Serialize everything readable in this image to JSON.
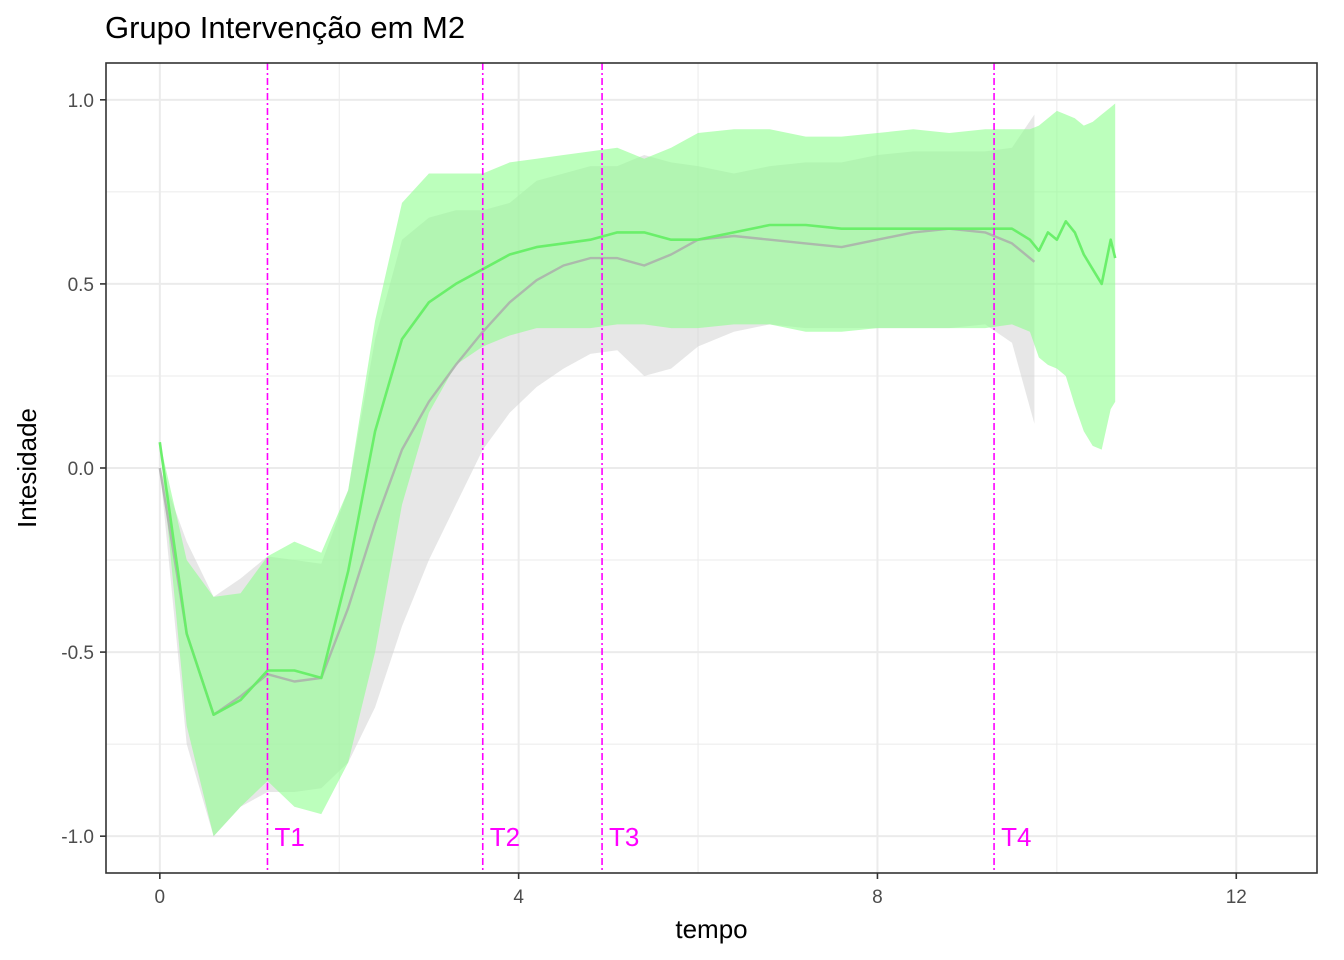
{
  "chart_data": {
    "type": "line",
    "title": "Grupo Intervenção em M2",
    "xlabel": "tempo",
    "ylabel": "Intesidade",
    "xlim": [
      -0.6,
      12.9
    ],
    "ylim": [
      -1.1,
      1.1
    ],
    "x_ticks": [
      0,
      4,
      8,
      12
    ],
    "x_tick_labels": [
      "0",
      "4",
      "8",
      "12"
    ],
    "y_ticks": [
      -1.0,
      -0.5,
      0.0,
      0.5,
      1.0
    ],
    "y_tick_labels": [
      "-1.0",
      "-0.5",
      "0.0",
      "0.5",
      "1.0"
    ],
    "grid": true,
    "legend": "none",
    "colors": {
      "green_line": "#66ee66",
      "green_band": "#90ff90",
      "grey_line": "#aaaaaa",
      "grey_band": "#d3d3d3",
      "marker": "#ff00ff",
      "grid": "#ebebeb",
      "panel_border": "#333333"
    },
    "markers": [
      {
        "x": 1.2,
        "label": "T1"
      },
      {
        "x": 3.6,
        "label": "T2"
      },
      {
        "x": 4.93,
        "label": "T3"
      },
      {
        "x": 9.3,
        "label": "T4"
      }
    ],
    "series": [
      {
        "color": "#aaaaaa",
        "band_color": "#d3d3d3",
        "x": [
          0,
          0.3,
          0.6,
          0.9,
          1.2,
          1.5,
          1.8,
          2.1,
          2.4,
          2.7,
          3.0,
          3.3,
          3.6,
          3.9,
          4.2,
          4.5,
          4.8,
          5.1,
          5.4,
          5.7,
          6.0,
          6.4,
          6.8,
          7.2,
          7.6,
          8.0,
          8.4,
          8.8,
          9.2,
          9.5,
          9.75
        ],
        "y": [
          0.0,
          -0.45,
          -0.67,
          -0.62,
          -0.56,
          -0.58,
          -0.57,
          -0.38,
          -0.15,
          0.05,
          0.18,
          0.28,
          0.37,
          0.45,
          0.51,
          0.55,
          0.57,
          0.57,
          0.55,
          0.58,
          0.62,
          0.63,
          0.62,
          0.61,
          0.6,
          0.62,
          0.64,
          0.65,
          0.64,
          0.61,
          0.56
        ],
        "lower": [
          0.0,
          -0.75,
          -1.0,
          -0.92,
          -0.88,
          -0.88,
          -0.87,
          -0.8,
          -0.65,
          -0.43,
          -0.25,
          -0.1,
          0.05,
          0.15,
          0.22,
          0.27,
          0.31,
          0.32,
          0.25,
          0.27,
          0.33,
          0.37,
          0.39,
          0.38,
          0.38,
          0.38,
          0.38,
          0.38,
          0.39,
          0.34,
          0.12
        ],
        "upper": [
          0.0,
          -0.2,
          -0.35,
          -0.3,
          -0.24,
          -0.25,
          -0.26,
          -0.06,
          0.35,
          0.62,
          0.68,
          0.7,
          0.7,
          0.72,
          0.78,
          0.8,
          0.82,
          0.82,
          0.85,
          0.83,
          0.82,
          0.8,
          0.82,
          0.83,
          0.83,
          0.85,
          0.86,
          0.86,
          0.86,
          0.87,
          0.96
        ]
      },
      {
        "color": "#66ee66",
        "band_color": "#90ff90",
        "x": [
          0,
          0.3,
          0.6,
          0.9,
          1.2,
          1.5,
          1.8,
          2.1,
          2.4,
          2.7,
          3.0,
          3.3,
          3.6,
          3.9,
          4.2,
          4.5,
          4.8,
          5.1,
          5.4,
          5.7,
          6.0,
          6.4,
          6.8,
          7.2,
          7.6,
          8.0,
          8.4,
          8.8,
          9.2,
          9.5,
          9.7,
          9.8,
          9.9,
          10.0,
          10.1,
          10.2,
          10.3,
          10.4,
          10.5,
          10.6,
          10.65
        ],
        "y": [
          0.07,
          -0.45,
          -0.67,
          -0.63,
          -0.55,
          -0.55,
          -0.57,
          -0.28,
          0.1,
          0.35,
          0.45,
          0.5,
          0.54,
          0.58,
          0.6,
          0.61,
          0.62,
          0.64,
          0.64,
          0.62,
          0.62,
          0.64,
          0.66,
          0.66,
          0.65,
          0.65,
          0.65,
          0.65,
          0.65,
          0.65,
          0.62,
          0.59,
          0.64,
          0.62,
          0.67,
          0.64,
          0.58,
          0.54,
          0.5,
          0.62,
          0.57
        ],
        "lower": [
          0.07,
          -0.7,
          -1.0,
          -0.92,
          -0.85,
          -0.92,
          -0.94,
          -0.8,
          -0.5,
          -0.1,
          0.15,
          0.28,
          0.33,
          0.36,
          0.38,
          0.38,
          0.38,
          0.39,
          0.39,
          0.38,
          0.38,
          0.39,
          0.39,
          0.37,
          0.37,
          0.38,
          0.38,
          0.38,
          0.38,
          0.39,
          0.37,
          0.3,
          0.28,
          0.27,
          0.25,
          0.17,
          0.1,
          0.06,
          0.05,
          0.16,
          0.18
        ],
        "upper": [
          0.07,
          -0.25,
          -0.35,
          -0.34,
          -0.24,
          -0.2,
          -0.23,
          -0.06,
          0.4,
          0.72,
          0.8,
          0.8,
          0.8,
          0.83,
          0.84,
          0.85,
          0.86,
          0.87,
          0.84,
          0.87,
          0.91,
          0.92,
          0.92,
          0.9,
          0.9,
          0.91,
          0.92,
          0.91,
          0.92,
          0.92,
          0.92,
          0.93,
          0.95,
          0.97,
          0.96,
          0.95,
          0.93,
          0.94,
          0.96,
          0.98,
          0.99
        ]
      }
    ]
  }
}
